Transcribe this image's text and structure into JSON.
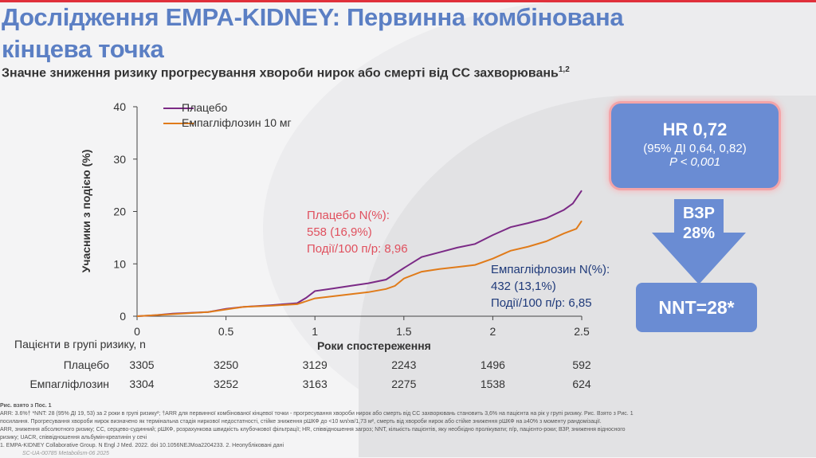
{
  "header": {
    "title": "Дослідження EMPA-KIDNEY: Первинна комбінована кінцева точка",
    "subtitle": "Значне зниження ризику прогресування хвороби нирок або смерті від СС захворювань",
    "subtitle_sup": "1,2"
  },
  "colors": {
    "placebo": "#7b2a86",
    "empa": "#e07b1a",
    "title": "#5b7fc4",
    "box": "#6a8cd3"
  },
  "chart_data": {
    "type": "line",
    "xlabel": "Роки спостереження",
    "ylabel": "Учасники з подією (%)",
    "xlim": [
      0,
      2.5
    ],
    "ylim": [
      0,
      40
    ],
    "xticks": [
      "0",
      "0.5",
      "1",
      "1.5",
      "2",
      "2.5"
    ],
    "yticks": [
      "0",
      "10",
      "20",
      "30",
      "40"
    ],
    "legend": {
      "placement": "top-left",
      "entries": [
        "Плацебо",
        "Емпагліфлозин 10 мг"
      ]
    },
    "series": [
      {
        "name": "Плацебо",
        "x": [
          0,
          0.1,
          0.2,
          0.4,
          0.5,
          0.6,
          0.75,
          0.9,
          0.95,
          1.0,
          1.1,
          1.2,
          1.3,
          1.4,
          1.5,
          1.6,
          1.7,
          1.8,
          1.9,
          2.0,
          2.1,
          2.2,
          2.3,
          2.4,
          2.45,
          2.5
        ],
        "y": [
          0,
          0.2,
          0.5,
          0.8,
          1.4,
          1.8,
          2.1,
          2.5,
          3.5,
          4.8,
          5.3,
          5.8,
          6.3,
          7,
          9.2,
          11.3,
          12.2,
          13.1,
          13.8,
          15.5,
          17,
          17.8,
          18.7,
          20.3,
          21.5,
          24
        ]
      },
      {
        "name": "Емпагліфлозин 10 мг",
        "x": [
          0,
          0.2,
          0.4,
          0.5,
          0.6,
          0.75,
          0.9,
          1.0,
          1.1,
          1.2,
          1.3,
          1.4,
          1.45,
          1.5,
          1.6,
          1.7,
          1.8,
          1.9,
          2.0,
          2.1,
          2.2,
          2.3,
          2.4,
          2.47,
          2.5
        ],
        "y": [
          0,
          0.4,
          0.8,
          1.3,
          1.8,
          2,
          2.3,
          3.4,
          3.8,
          4.2,
          4.6,
          5.2,
          5.8,
          7.2,
          8.5,
          9,
          9.4,
          9.8,
          11,
          12.5,
          13.3,
          14.3,
          15.8,
          16.7,
          18.2
        ]
      }
    ],
    "annotations": {
      "placebo": [
        "Плацебо N(%):",
        "558 (16,9%)",
        "Події/100 п/р: 8,96"
      ],
      "empa": [
        "Емпагліфлозин N(%):",
        "432 (13,1%)",
        "Події/100 п/р: 6,85"
      ]
    }
  },
  "risk_table": {
    "header": "Пацієнти в групі ризику, n",
    "rows": [
      {
        "label": "Плацебо",
        "values": [
          "3305",
          "3250",
          "3129",
          "2243",
          "1496",
          "592"
        ]
      },
      {
        "label": "Емпагліфлозин",
        "values": [
          "3304",
          "3252",
          "3163",
          "2275",
          "1538",
          "624"
        ]
      }
    ]
  },
  "stats": {
    "hr": "HR 0,72",
    "ci": "(95% ДІ 0,64, 0,82)",
    "p": "P < 0,001",
    "rrr_label": "ВЗР",
    "rrr_value": "28%",
    "nnt": "NNT=28*"
  },
  "footnotes": [
    "Рис. взято з Пос. 1",
    "ARR: 3.6%† *NNT: 28 (95% ДІ 19, 53) за 2 роки в групі ризику²; †ARR для первинної комбінованої кінцевої точки - прогресування хвороби нирок або смерть від СС захворювань становить 3,6% на пацієнта на рік у групі ризику. Рис. Взято з Рис. 1",
    "посилання. Прогресування хвороби нирок визначено як термінальна стадія ниркової недостатності, стійке зниження рШКФ до <10 мл/хв/1,73 м², смерть від хвороби нирок або стійке зниження рШКФ на ≥40% з моменту рандомізації.",
    "ARR, зниження абсолютного ризику; СС, серцево-судинний; рШКФ, розрахункова швидкість клубочкової фільтрації; HR, співвідношення загроз; NNT, кількість пацієнтів, яку необхідно пролікувати; п/р, пацієнто-роки; ВЗР, зниження відносного",
    "ризику; UACR, співвідношення альбумін-креатинін у сечі",
    "1.    EMPA-KIDNEY Collaborative Group. N Engl J Med. 2022. doi 10.1056NEJMoa2204233. 2. Неопубліковані дані",
    "SC-UA-00785  Metabolism-06 2025"
  ]
}
